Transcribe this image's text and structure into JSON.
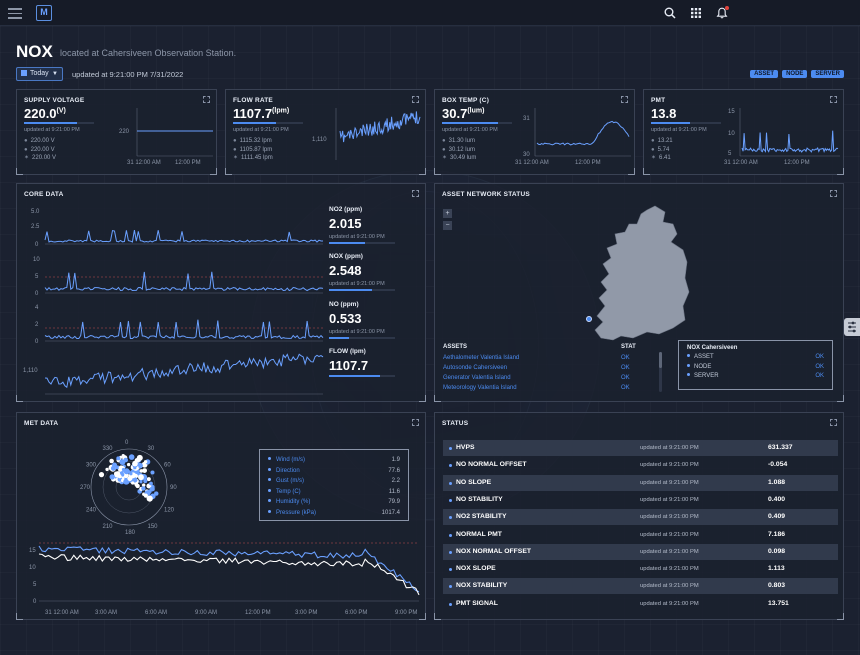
{
  "header": {
    "title": "NOX",
    "subtitle": "located at Cahersiveen Observation Station.",
    "date_button": "Today",
    "updated": "updated at 9:21:00 PM 7/31/2022",
    "pills": [
      "ASSET",
      "NODE",
      "SERVER"
    ]
  },
  "kpis": [
    {
      "title": "SUPPLY VOLTAGE",
      "value": "220.0",
      "unit": "(V)",
      "updated": "updated at 9:21:00 PM",
      "stats": [
        [
          "●",
          "220.00 V"
        ],
        [
          "●",
          "220.00 V"
        ],
        [
          "✶",
          "220.00 V"
        ]
      ],
      "y_tick": "220",
      "x_ticks": [
        "31 12:00 AM",
        "12:00 PM"
      ],
      "bar_fill": 0.75
    },
    {
      "title": "FLOW RATE",
      "value": "1107.7",
      "unit": "(lpm)",
      "updated": "updated at 9:21:00 PM",
      "stats": [
        [
          "●",
          "1115.32 lpm"
        ],
        [
          "●",
          "1105.87 lpm"
        ],
        [
          "✶",
          "1111.45 lpm"
        ]
      ],
      "y_tick": "1,110",
      "bar_fill": 0.62
    },
    {
      "title": "BOX TEMP (C)",
      "value": "30.7",
      "unit": "(lum)",
      "updated": "updated at 9:21:00 PM",
      "stats": [
        [
          "●",
          "31.30 lum"
        ],
        [
          "●",
          "30.12 lum"
        ],
        [
          "✶",
          "30.49 lum"
        ]
      ],
      "y_ticks": [
        "31",
        "30"
      ],
      "x_ticks": [
        "31 12:00 AM",
        "12:00 PM"
      ],
      "bar_fill": 0.8
    },
    {
      "title": "PMT",
      "value": "13.8",
      "unit": "",
      "updated": "updated at 9:21:00 PM",
      "stats": [
        [
          "●",
          "13.21"
        ],
        [
          "●",
          "5.74"
        ],
        [
          "✶",
          "6.41"
        ]
      ],
      "y_ticks": [
        "15",
        "10",
        "5"
      ],
      "x_ticks": [
        "31 12:00 AM",
        "12:00 PM"
      ],
      "bar_fill": 0.55
    }
  ],
  "core_data": {
    "title": "CORE DATA",
    "charts": [
      {
        "y_ticks": [
          "5.0",
          "2.5",
          "0"
        ]
      },
      {
        "y_ticks": [
          "10",
          "5",
          "0"
        ]
      },
      {
        "y_ticks": [
          "4",
          "2",
          "0"
        ]
      },
      {
        "y_ticks": [
          "1,110"
        ]
      }
    ],
    "readouts": [
      {
        "label": "NO2 (ppm)",
        "value": "2.015",
        "updated": "updated at 9:21:00 PM",
        "bar_fill": 0.55
      },
      {
        "label": "NOX (ppm)",
        "value": "2.548",
        "updated": "updated at 9:21:00 PM",
        "bar_fill": 0.65
      },
      {
        "label": "NO (ppm)",
        "value": "0.533",
        "updated": "updated at 9:21:00 PM",
        "bar_fill": 0.3
      },
      {
        "label": "FLOW (lpm)",
        "value": "1107.7",
        "updated": "updated at 9:21:00 PM",
        "bar_fill": 0.78
      }
    ]
  },
  "asset_network": {
    "title": "ASSET NETWORK STATUS",
    "zoom_in": "+",
    "zoom_out": "−",
    "assets_header": "ASSETS",
    "stat_header": "STAT",
    "assets": [
      {
        "name": "Aethalometer Valentia Island",
        "stat": "OK"
      },
      {
        "name": "Autosonde Cahersiveen",
        "stat": "OK"
      },
      {
        "name": "Generator Valentia Island",
        "stat": "OK"
      },
      {
        "name": "Meteorology Valentia Island",
        "stat": "OK"
      }
    ],
    "popup": {
      "title": "NOX Cahersiveen",
      "rows": [
        {
          "name": "ASSET",
          "stat": "OK"
        },
        {
          "name": "NODE",
          "stat": "OK"
        },
        {
          "name": "SERVER",
          "stat": "OK"
        }
      ]
    }
  },
  "met_data": {
    "title": "MET DATA",
    "compass": [
      "0",
      "30",
      "60",
      "90",
      "120",
      "150",
      "180",
      "210",
      "240",
      "270",
      "300",
      "330"
    ],
    "legend": [
      {
        "key": "Wind (m/s)",
        "value": "1.9"
      },
      {
        "key": "Direction",
        "value": "77.6"
      },
      {
        "key": "Gust (m/s)",
        "value": "2.2"
      },
      {
        "key": "Temp (C)",
        "value": "11.6"
      },
      {
        "key": "Humidity (%)",
        "value": "79.9"
      },
      {
        "key": "Pressure (kPa)",
        "value": "1017.4"
      }
    ],
    "y_ticks": [
      "15",
      "10",
      "5",
      "0"
    ],
    "x_ticks": [
      "31 12:00 AM",
      "3:00 AM",
      "6:00 AM",
      "9:00 AM",
      "12:00 PM",
      "3:00 PM",
      "6:00 PM",
      "9:00 PM"
    ]
  },
  "status": {
    "title": "STATUS",
    "rows": [
      {
        "name": "HVPS",
        "updated": "updated at 9:21:00 PM",
        "value": "631.337"
      },
      {
        "name": "NO NORMAL OFFSET",
        "updated": "updated at 9:21:00 PM",
        "value": "-0.054"
      },
      {
        "name": "NO SLOPE",
        "updated": "updated at 9:21:00 PM",
        "value": "1.088"
      },
      {
        "name": "NO STABILITY",
        "updated": "updated at 9:21:00 PM",
        "value": "0.400"
      },
      {
        "name": "NO2 STABILITY",
        "updated": "updated at 9:21:00 PM",
        "value": "0.409"
      },
      {
        "name": "NORMAL PMT",
        "updated": "updated at 9:21:00 PM",
        "value": "7.186"
      },
      {
        "name": "NOX NORMAL OFFSET",
        "updated": "updated at 9:21:00 PM",
        "value": "0.098"
      },
      {
        "name": "NOX SLOPE",
        "updated": "updated at 9:21:00 PM",
        "value": "1.113"
      },
      {
        "name": "NOX STABILITY",
        "updated": "updated at 9:21:00 PM",
        "value": "0.803"
      },
      {
        "name": "PMT SIGNAL",
        "updated": "updated at 9:21:00 PM",
        "value": "13.751"
      }
    ]
  },
  "colors": {
    "accent": "#4c8bf0",
    "background": "#1b2130",
    "panel_border": "#3a4254"
  },
  "icons": [
    "menu-icon",
    "logo-icon",
    "search-icon",
    "apps-grid-icon",
    "bell-icon",
    "expand-icon",
    "calendar-icon",
    "settings-sliders-icon"
  ]
}
